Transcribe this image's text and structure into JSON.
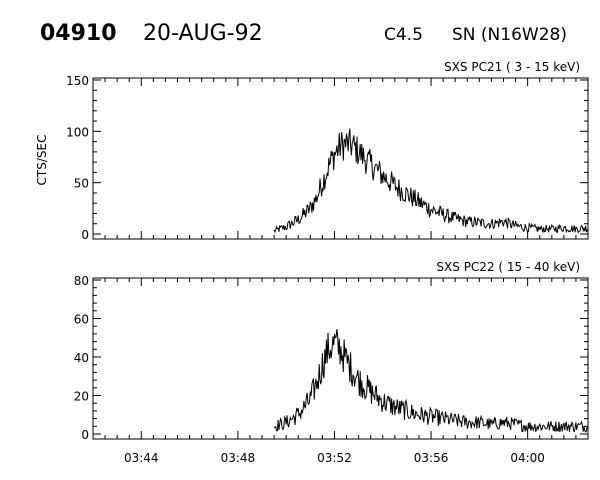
{
  "header": {
    "event_id": "04910",
    "date": "20-AUG-92",
    "flare_class": "C4.5",
    "location": "SN (N16W28)"
  },
  "chart_data": [
    {
      "type": "line",
      "title": "SXS PC21  (  3 - 15 keV)",
      "ylabel": "CTS/SEC",
      "xlabel": "",
      "xlim": [
        "03:42:00",
        "04:02:30"
      ],
      "ylim": [
        0,
        150
      ],
      "yticks": [
        0,
        50,
        100,
        150
      ],
      "xticks": [
        "03:44",
        "03:48",
        "03:52",
        "03:56",
        "04:00"
      ],
      "series": [
        {
          "color": "#000000",
          "x": [
            "03:49:30",
            "03:50:00",
            "03:50:30",
            "03:51:00",
            "03:51:15",
            "03:51:30",
            "03:51:45",
            "03:52:00",
            "03:52:15",
            "03:52:30",
            "03:52:45",
            "03:53:00",
            "03:53:30",
            "03:54:00",
            "03:54:30",
            "03:55:00",
            "03:55:30",
            "03:56:00",
            "03:56:30",
            "03:57:00",
            "03:57:30",
            "03:58:00",
            "03:58:30",
            "03:59:00",
            "03:59:30",
            "04:00:00",
            "04:00:30",
            "04:01:00",
            "04:01:30",
            "04:02:00",
            "04:02:30"
          ],
          "y": [
            3,
            7,
            14,
            25,
            35,
            50,
            65,
            78,
            86,
            88,
            86,
            80,
            68,
            57,
            47,
            39,
            31,
            24,
            19,
            15,
            12,
            11,
            10,
            12,
            8,
            6,
            5,
            5,
            6,
            5,
            6
          ]
        }
      ]
    },
    {
      "type": "line",
      "title": "SXS PC22  ( 15 - 40 keV)",
      "ylabel": "",
      "xlabel": "",
      "xlim": [
        "03:42:00",
        "04:02:30"
      ],
      "ylim": [
        0,
        80
      ],
      "yticks": [
        0,
        20,
        40,
        60,
        80
      ],
      "xticks": [
        "03:44",
        "03:48",
        "03:52",
        "03:56",
        "04:00"
      ],
      "series": [
        {
          "color": "#000000",
          "x": [
            "03:49:30",
            "03:50:00",
            "03:50:30",
            "03:51:00",
            "03:51:15",
            "03:51:30",
            "03:51:45",
            "03:52:00",
            "03:52:15",
            "03:52:30",
            "03:52:45",
            "03:53:00",
            "03:53:30",
            "03:54:00",
            "03:54:30",
            "03:55:00",
            "03:55:30",
            "03:56:00",
            "03:56:30",
            "03:57:00",
            "03:57:30",
            "03:58:00",
            "03:58:30",
            "03:59:00",
            "03:59:30",
            "04:00:00",
            "04:00:30",
            "04:01:00",
            "04:01:30",
            "04:02:00",
            "04:02:30"
          ],
          "y": [
            4,
            6,
            10,
            18,
            26,
            36,
            44,
            47,
            44,
            38,
            33,
            28,
            22,
            17,
            14,
            12,
            10,
            9,
            8,
            7,
            6,
            6,
            5,
            6,
            5,
            4,
            4,
            4,
            4,
            4,
            4
          ]
        }
      ]
    }
  ]
}
